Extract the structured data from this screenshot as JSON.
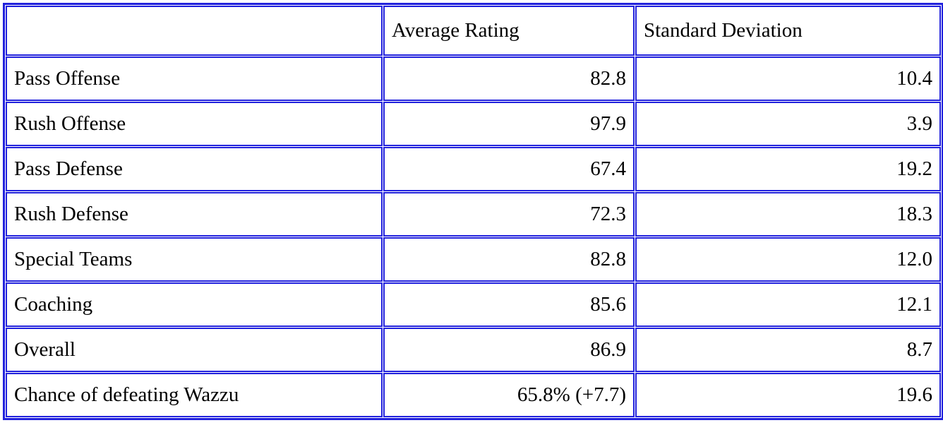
{
  "styles": {
    "border_color": "#2222dd",
    "text_color": "#000000",
    "background_color": "#ffffff"
  },
  "chart_data": {
    "type": "table",
    "title": "",
    "columns": [
      "",
      "Average Rating",
      "Standard Deviation"
    ],
    "rows": [
      {
        "label": "Pass Offense",
        "average_rating": "82.8",
        "standard_deviation": "10.4"
      },
      {
        "label": "Rush Offense",
        "average_rating": "97.9",
        "standard_deviation": "3.9"
      },
      {
        "label": "Pass Defense",
        "average_rating": "67.4",
        "standard_deviation": "19.2"
      },
      {
        "label": "Rush Defense",
        "average_rating": "72.3",
        "standard_deviation": "18.3"
      },
      {
        "label": "Special Teams",
        "average_rating": "82.8",
        "standard_deviation": "12.0"
      },
      {
        "label": "Coaching",
        "average_rating": "85.6",
        "standard_deviation": "12.1"
      },
      {
        "label": "Overall",
        "average_rating": "86.9",
        "standard_deviation": "8.7"
      },
      {
        "label": "Chance of defeating Wazzu",
        "average_rating": "65.8% (+7.7)",
        "standard_deviation": "19.6"
      }
    ]
  }
}
